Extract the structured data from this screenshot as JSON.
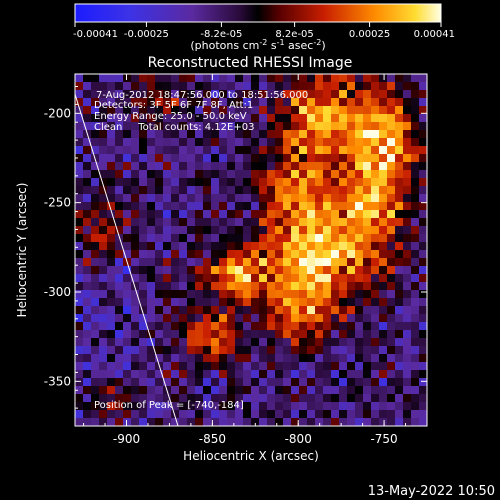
{
  "chart_data": {
    "type": "heatmap",
    "title": "Reconstructed RHESSI Image",
    "xlabel": "Heliocentric X (arcsec)",
    "ylabel": "Heliocentric Y (arcsec)",
    "xlim": [
      -930,
      -725
    ],
    "ylim": [
      -375,
      -178
    ],
    "x_ticks": [
      -900,
      -850,
      -800,
      -750
    ],
    "x_tick_labels": [
      "-900",
      "-850",
      "-800",
      "-750"
    ],
    "y_ticks": [
      -200,
      -250,
      -300,
      -350
    ],
    "y_tick_labels": [
      "-200",
      "-250",
      "-300",
      "-350"
    ],
    "colorbar": {
      "range": [
        -0.00041,
        0.00041
      ],
      "ticks": [
        -0.00041,
        -0.00025,
        -8.2e-05,
        8.2e-05,
        0.00025,
        0.00041
      ],
      "tick_labels": [
        "-0.00041",
        "-0.00025",
        "-8.2e-05",
        "8.2e-05",
        "0.00025",
        "0.00041"
      ],
      "unit_text": "(photons cm",
      "unit_sup1": "-2",
      "unit_mid": " s",
      "unit_sup2": "-1",
      "unit_end": " asec",
      "unit_sup3": "-2",
      "unit_close": ")"
    },
    "annotations": [
      "7-Aug-2012 18:47:56.000 to 18:51:56.000",
      "Detectors: 3F 5F 6F 7F 8F, Att:1",
      "Energy Range: 25.0 - 50.0 keV",
      "Clean     Total counts: 4.12E+03"
    ],
    "peak_label": "Position of Peak = [-740,-184]",
    "peak": {
      "x": -740,
      "y": -184
    },
    "limb_line": [
      [
        -933,
        -180
      ],
      [
        -870,
        -375
      ]
    ],
    "emission_features": [
      {
        "x": -785,
        "y": -200,
        "amp": 0.00035,
        "sx": 18,
        "sy": 16
      },
      {
        "x": -750,
        "y": -215,
        "amp": 0.00038,
        "sx": 14,
        "sy": 18
      },
      {
        "x": -800,
        "y": -245,
        "amp": 0.00032,
        "sx": 14,
        "sy": 20
      },
      {
        "x": -760,
        "y": -255,
        "amp": 0.00036,
        "sx": 16,
        "sy": 18
      },
      {
        "x": -790,
        "y": -285,
        "amp": 0.00038,
        "sx": 20,
        "sy": 16
      },
      {
        "x": -835,
        "y": -290,
        "amp": 0.00033,
        "sx": 14,
        "sy": 12
      },
      {
        "x": -850,
        "y": -325,
        "amp": 0.00028,
        "sx": 12,
        "sy": 10
      },
      {
        "x": -800,
        "y": -315,
        "amp": 0.00028,
        "sx": 14,
        "sy": 10
      },
      {
        "x": -915,
        "y": -265,
        "amp": 0.00024,
        "sx": 10,
        "sy": 14
      },
      {
        "x": -880,
        "y": -190,
        "amp": 0.00014,
        "sx": 12,
        "sy": 12
      },
      {
        "x": -905,
        "y": -360,
        "amp": 0.0002,
        "sx": 10,
        "sy": 10
      }
    ],
    "background_level": -9e-05,
    "colors": {
      "background": "#000000",
      "text": "#ffffff",
      "axes": "#ffffff"
    }
  },
  "timestamp": "13-May-2022 10:50"
}
